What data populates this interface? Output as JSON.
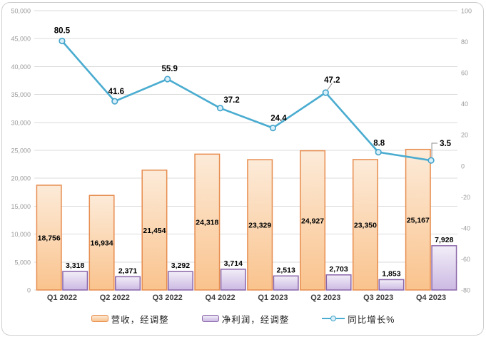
{
  "chart_data": {
    "type": "combo-bar-line",
    "title": "",
    "categories": [
      "Q1 2022",
      "Q2 2022",
      "Q3 2022",
      "Q4 2022",
      "Q1 2023",
      "Q2 2023",
      "Q3 2023",
      "Q4 2023"
    ],
    "series": [
      {
        "name": "营收，经调整",
        "type": "bar",
        "axis": "left",
        "values": [
          18756,
          16934,
          21454,
          24318,
          23329,
          24927,
          23350,
          25167
        ],
        "labels": [
          "18,756",
          "16,934",
          "21,454",
          "24,318",
          "23,329",
          "24,927",
          "23,350",
          "25,167"
        ]
      },
      {
        "name": "净利润，经调整",
        "type": "bar",
        "axis": "left",
        "values": [
          3318,
          2371,
          3292,
          3714,
          2513,
          2703,
          1853,
          7928
        ],
        "labels": [
          "3,318",
          "2,371",
          "3,292",
          "3,714",
          "2,513",
          "2,703",
          "1,853",
          "7,928"
        ]
      },
      {
        "name": "同比增长%",
        "type": "line",
        "axis": "right",
        "values": [
          80.5,
          41.6,
          55.9,
          37.2,
          24.4,
          47.2,
          8.8,
          3.5
        ],
        "labels": [
          "80.5",
          "41.6",
          "55.9",
          "37.2",
          "24.4",
          "47.2",
          "8.8",
          "3.5"
        ]
      }
    ],
    "left_axis": {
      "min": 0,
      "max": 50000,
      "step": 5000,
      "tick_values": [
        0,
        5000,
        10000,
        15000,
        20000,
        25000,
        30000,
        35000,
        40000,
        45000,
        50000
      ],
      "tick_labels": [
        "0",
        "5,000",
        "10,000",
        "15,000",
        "20,000",
        "25,000",
        "30,000",
        "35,000",
        "40,000",
        "45,000",
        "50,000"
      ]
    },
    "right_axis": {
      "min": -80,
      "max": 100,
      "step": 20,
      "tick_values": [
        -80,
        -60,
        -40,
        -20,
        0,
        20,
        40,
        60,
        80,
        100
      ],
      "tick_labels": [
        "-80",
        "-60",
        "-40",
        "-20",
        "0",
        "20",
        "40",
        "60",
        "80",
        "100"
      ]
    },
    "grid": true,
    "legend_position": "bottom",
    "colors": {
      "revenue_fill_top": "#fcebd9",
      "revenue_fill_bottom": "#fac38d",
      "revenue_border": "#e78c4e",
      "profit_fill_top": "#f2eef8",
      "profit_fill_bottom": "#ccb9e3",
      "profit_border": "#8b66aa",
      "line": "#4aacd0",
      "marker_fill": "#d9eff9",
      "marker_border": "#43a4cb",
      "gridline": "#dbdbdb",
      "tick_text": "#9a9a9a",
      "category_text": "#3d3d3d",
      "data_label_text": "#000000",
      "frame_border": "#cfcfcf"
    }
  },
  "legend": {
    "items": [
      {
        "label": "营收，经调整"
      },
      {
        "label": "净利润，经调整"
      },
      {
        "label": "同比增长%"
      }
    ]
  }
}
